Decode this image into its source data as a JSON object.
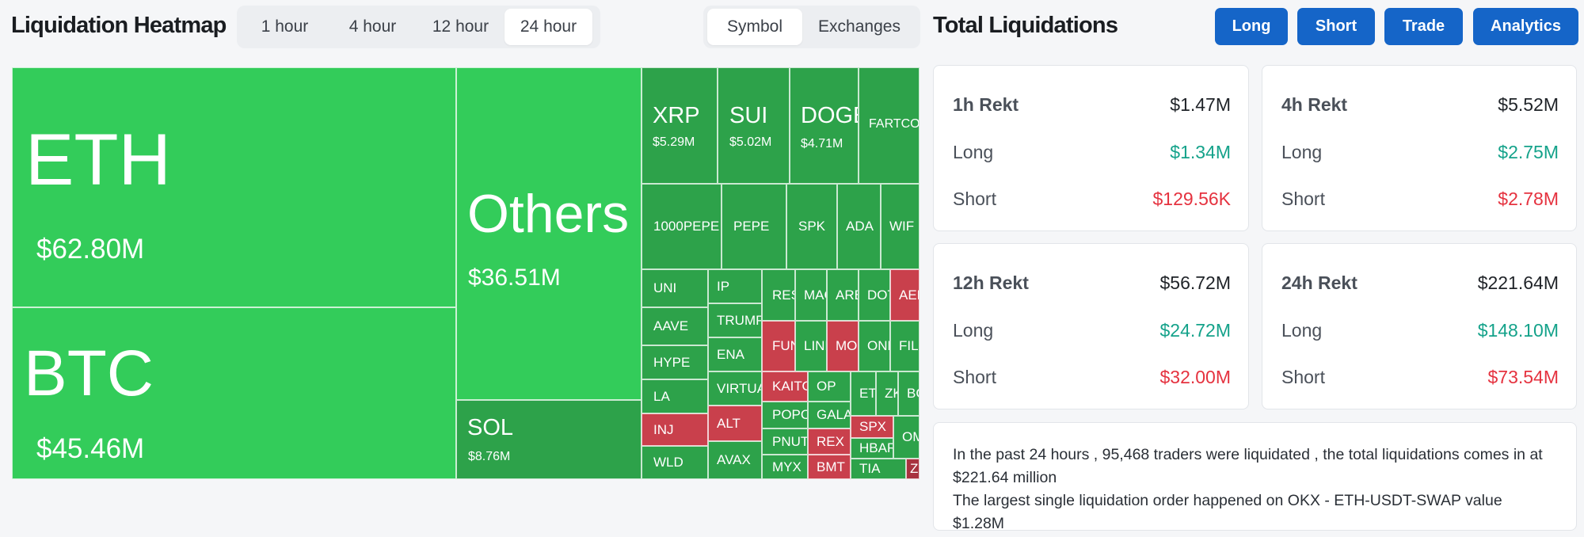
{
  "heatmap": {
    "title": "Liquidation Heatmap",
    "time_options": [
      "1 hour",
      "4 hour",
      "12 hour",
      "24 hour"
    ],
    "selected_time": "24 hour",
    "view_options": [
      "Symbol",
      "Exchanges"
    ],
    "selected_view": "Symbol",
    "tiles": {
      "eth": {
        "symbol": "ETH",
        "value": "$62.80M"
      },
      "btc": {
        "symbol": "BTC",
        "value": "$45.46M"
      },
      "others": {
        "symbol": "Others",
        "value": "$36.51M"
      },
      "sol": {
        "symbol": "SOL",
        "value": "$8.76M"
      },
      "xrp": {
        "symbol": "XRP",
        "value": "$5.29M"
      },
      "sui": {
        "symbol": "SUI",
        "value": "$5.02M"
      },
      "doge": {
        "symbol": "DOGE",
        "value": "$4.71M"
      },
      "fartcoin": {
        "symbol": "FARTCOIN"
      },
      "pepe1000": {
        "symbol": "1000PEPE"
      },
      "pepe": {
        "symbol": "PEPE"
      },
      "spk": {
        "symbol": "SPK"
      },
      "ada": {
        "symbol": "ADA"
      },
      "wif": {
        "symbol": "WIF"
      },
      "uni": {
        "symbol": "UNI"
      },
      "ip": {
        "symbol": "IP"
      },
      "res": {
        "symbol": "RESOLV"
      },
      "ma": {
        "symbol": "MAGIC"
      },
      "ar": {
        "symbol": "ARB"
      },
      "do": {
        "symbol": "DOT"
      },
      "ae": {
        "symbol": "AERO"
      },
      "aave": {
        "symbol": "AAVE"
      },
      "trump": {
        "symbol": "TRUMP"
      },
      "fun": {
        "symbol": "FUN"
      },
      "lin": {
        "symbol": "LINK"
      },
      "mo": {
        "symbol": "MOODENG"
      },
      "on": {
        "symbol": "ONDO"
      },
      "fil": {
        "symbol": "FIL"
      },
      "hype": {
        "symbol": "HYPE"
      },
      "ena": {
        "symbol": "ENA"
      },
      "la": {
        "symbol": "LA"
      },
      "virtual": {
        "symbol": "VIRTUAL"
      },
      "kaito": {
        "symbol": "KAITO"
      },
      "op": {
        "symbol": "OP"
      },
      "et": {
        "symbol": "ETC"
      },
      "zk": {
        "symbol": "ZK"
      },
      "bc": {
        "symbol": "BCH"
      },
      "inj": {
        "symbol": "INJ"
      },
      "alt": {
        "symbol": "ALT"
      },
      "popcat": {
        "symbol": "POPCAT"
      },
      "gala": {
        "symbol": "GALA"
      },
      "spx": {
        "symbol": "SPX"
      },
      "om": {
        "symbol": "OM"
      },
      "pnut": {
        "symbol": "PNUT"
      },
      "rex": {
        "symbol": "REX"
      },
      "hbar": {
        "symbol": "HBAR"
      },
      "wld": {
        "symbol": "WLD"
      },
      "avax": {
        "symbol": "AVAX"
      },
      "myx": {
        "symbol": "MYX"
      },
      "bmt": {
        "symbol": "BMT"
      },
      "tia": {
        "symbol": "TIA"
      },
      "zro": {
        "symbol": "ZRO"
      }
    }
  },
  "total": {
    "title": "Total Liquidations",
    "buttons": [
      "Long",
      "Short",
      "Trade",
      "Analytics"
    ],
    "cards": [
      {
        "label": "1h Rekt",
        "total": "$1.47M",
        "long_label": "Long",
        "long": "$1.34M",
        "short_label": "Short",
        "short": "$129.56K"
      },
      {
        "label": "4h Rekt",
        "total": "$5.52M",
        "long_label": "Long",
        "long": "$2.75M",
        "short_label": "Short",
        "short": "$2.78M"
      },
      {
        "label": "12h Rekt",
        "total": "$56.72M",
        "long_label": "Long",
        "long": "$24.72M",
        "short_label": "Short",
        "short": "$32.00M"
      },
      {
        "label": "24h Rekt",
        "total": "$221.64M",
        "long_label": "Long",
        "long": "$148.10M",
        "short_label": "Short",
        "short": "$73.54M"
      }
    ],
    "summary_line1": "In the past 24 hours , 95,468 traders were liquidated , the total liquidations comes in at $221.64 million",
    "summary_line2": "The largest single liquidation order happened on OKX - ETH-USDT-SWAP value $1.28M"
  },
  "colors": {
    "accent": "#1565c8",
    "long": "#14a28a",
    "short": "#e5323f",
    "heat_green": "#33cc5a",
    "heat_dark_green": "#2da24a",
    "heat_red": "#c9404c"
  }
}
